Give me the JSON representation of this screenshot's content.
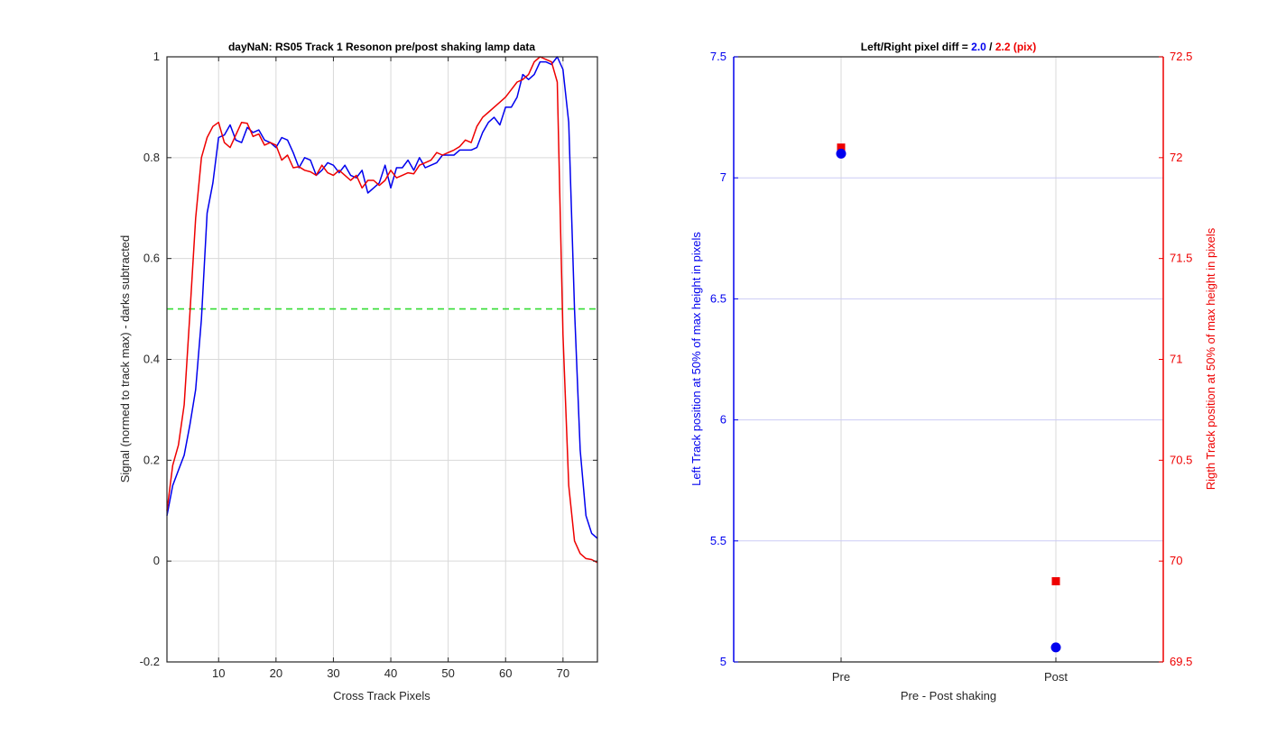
{
  "chart_data": [
    {
      "type": "line",
      "title": "dayNaN: RS05  Track 1 Resonon pre/post shaking lamp data",
      "xlabel": "Cross Track Pixels",
      "ylabel": "Signal (normed to track max) - darks subtracted",
      "xlim": [
        1,
        76
      ],
      "ylim": [
        -0.2,
        1
      ],
      "xticks": [
        10,
        20,
        30,
        40,
        50,
        60,
        70
      ],
      "yticks": [
        -0.2,
        0,
        0.2,
        0.4,
        0.6,
        0.8,
        1
      ],
      "grid": true,
      "threshold": {
        "y": 0.5,
        "color": "#33dd33",
        "style": "dashed"
      },
      "series": [
        {
          "color": "#0000ee",
          "x": [
            1,
            2,
            3,
            4,
            5,
            6,
            7,
            8,
            9,
            10,
            11,
            12,
            13,
            14,
            15,
            16,
            17,
            18,
            19,
            20,
            21,
            22,
            23,
            24,
            25,
            26,
            27,
            28,
            29,
            30,
            31,
            32,
            33,
            34,
            35,
            36,
            37,
            38,
            39,
            40,
            41,
            42,
            43,
            44,
            45,
            46,
            47,
            48,
            49,
            50,
            51,
            52,
            53,
            54,
            55,
            56,
            57,
            58,
            59,
            60,
            61,
            62,
            63,
            64,
            65,
            66,
            67,
            68,
            69,
            70,
            71,
            72,
            73,
            74,
            75,
            76
          ],
          "y": [
            0.09,
            0.15,
            0.18,
            0.21,
            0.27,
            0.34,
            0.48,
            0.69,
            0.75,
            0.84,
            0.845,
            0.865,
            0.835,
            0.83,
            0.86,
            0.85,
            0.855,
            0.835,
            0.83,
            0.82,
            0.84,
            0.835,
            0.81,
            0.78,
            0.8,
            0.795,
            0.765,
            0.775,
            0.79,
            0.785,
            0.77,
            0.785,
            0.765,
            0.76,
            0.775,
            0.73,
            0.74,
            0.75,
            0.785,
            0.74,
            0.78,
            0.78,
            0.795,
            0.775,
            0.8,
            0.78,
            0.785,
            0.79,
            0.805,
            0.805,
            0.805,
            0.815,
            0.815,
            0.815,
            0.82,
            0.85,
            0.87,
            0.88,
            0.865,
            0.9,
            0.9,
            0.92,
            0.965,
            0.955,
            0.965,
            0.99,
            0.99,
            0.985,
            1.0,
            0.975,
            0.87,
            0.5,
            0.22,
            0.09,
            0.055,
            0.045
          ]
        },
        {
          "color": "#ee0000",
          "x": [
            1,
            2,
            3,
            4,
            5,
            6,
            7,
            8,
            9,
            10,
            11,
            12,
            13,
            14,
            15,
            16,
            17,
            18,
            19,
            20,
            21,
            22,
            23,
            24,
            25,
            26,
            27,
            28,
            29,
            30,
            31,
            32,
            33,
            34,
            35,
            36,
            37,
            38,
            39,
            40,
            41,
            42,
            43,
            44,
            45,
            46,
            47,
            48,
            49,
            50,
            51,
            52,
            53,
            54,
            55,
            56,
            57,
            58,
            59,
            60,
            61,
            62,
            63,
            64,
            65,
            66,
            67,
            68,
            69,
            70,
            71,
            72,
            73,
            74,
            75,
            76
          ],
          "y": [
            0.1,
            0.19,
            0.23,
            0.31,
            0.49,
            0.68,
            0.8,
            0.84,
            0.862,
            0.87,
            0.83,
            0.82,
            0.845,
            0.87,
            0.868,
            0.842,
            0.847,
            0.825,
            0.83,
            0.825,
            0.795,
            0.805,
            0.78,
            0.782,
            0.775,
            0.772,
            0.765,
            0.785,
            0.77,
            0.765,
            0.775,
            0.765,
            0.755,
            0.765,
            0.74,
            0.755,
            0.755,
            0.745,
            0.755,
            0.775,
            0.76,
            0.765,
            0.77,
            0.768,
            0.785,
            0.79,
            0.795,
            0.81,
            0.805,
            0.81,
            0.815,
            0.822,
            0.835,
            0.83,
            0.862,
            0.88,
            0.89,
            0.9,
            0.91,
            0.92,
            0.935,
            0.95,
            0.955,
            0.965,
            0.99,
            1.0,
            0.995,
            0.99,
            0.95,
            0.45,
            0.15,
            0.04,
            0.015,
            0.005,
            0.003,
            -0.003
          ]
        }
      ]
    },
    {
      "type": "scatter",
      "title_prefix": "Left/Right pixel diff = ",
      "title_left_value": "2.0",
      "title_sep": " / ",
      "title_right_value": "2.2 (pix)",
      "xlabel": "Pre - Post shaking",
      "ylabel_left": "Left Track position at 50% of max height in pixels",
      "ylabel_right": "Rigth Track position at 50% of max height in pixels",
      "categories": [
        "Pre",
        "Post"
      ],
      "ylim_left": [
        5,
        7.5
      ],
      "ylim_right": [
        69.5,
        72.5
      ],
      "yticks_left": [
        "5",
        "5.5",
        "6",
        "6.5",
        "7",
        "7.5"
      ],
      "yticks_right": [
        "69.5",
        "70",
        "70.5",
        "71",
        "71.5",
        "72",
        "72.5"
      ],
      "left_color": "#0000ee",
      "right_color": "#ee0000",
      "grid": true,
      "left_values": [
        7.1,
        5.06
      ],
      "right_values": [
        72.05,
        69.9
      ]
    }
  ]
}
